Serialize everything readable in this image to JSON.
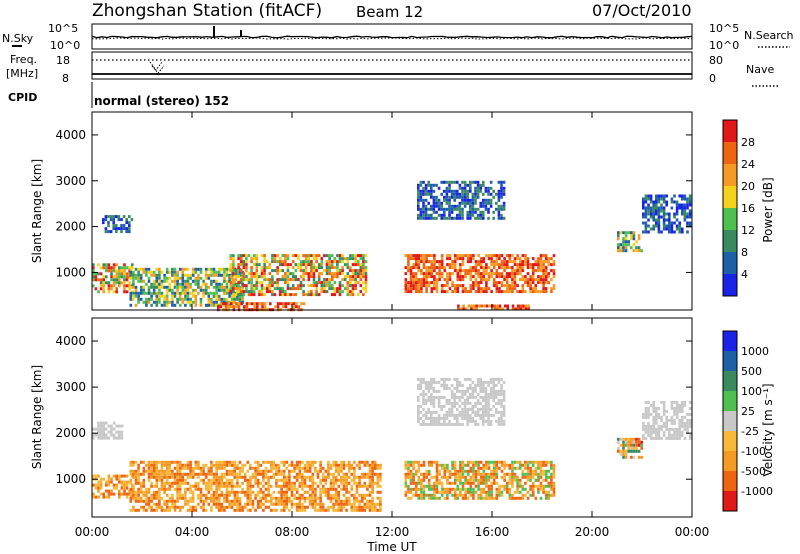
{
  "header": {
    "station": "Zhongshan Station (fitACF)",
    "beam": "Beam 12",
    "date": "07/Oct/2010"
  },
  "noise_panel": {
    "left_label": "N.Sky",
    "right_label": "N.Search",
    "left_ticks": [
      "10^5",
      "10^0"
    ],
    "right_ticks": [
      "10^5",
      "10^0"
    ]
  },
  "freq_panel": {
    "left_label_line1": "Freq.",
    "left_label_line2": "[MHz]",
    "right_label": "Nave",
    "left_ticks": [
      "18",
      "8"
    ],
    "right_ticks": [
      "80",
      "0"
    ]
  },
  "cpid_panel": {
    "label": "CPID",
    "text": "normal (stereo) 152"
  },
  "x_axis": {
    "label": "Time UT",
    "ticks": [
      "00:00",
      "04:00",
      "08:00",
      "12:00",
      "16:00",
      "20:00",
      "00:00"
    ]
  },
  "colors": {
    "power_scale": [
      "#1a24e6",
      "#1d5fa8",
      "#3a8a60",
      "#4fbf4f",
      "#f4d21c",
      "#f59a22",
      "#ee6410",
      "#e01818"
    ],
    "velocity_scale": [
      "#e01818",
      "#ee6410",
      "#f59a22",
      "#f5b838",
      "#c8c8c8",
      "#4fbf4f",
      "#3a8a60",
      "#1d5fa8",
      "#1a24e6"
    ]
  },
  "chart_data": [
    {
      "type": "heatmap",
      "title": "Power",
      "xlabel": "Time UT",
      "ylabel": "Slant Range [km]",
      "xlim": [
        0,
        24
      ],
      "ylim": [
        180,
        4500
      ],
      "y_ticks": [
        "1000",
        "2000",
        "3000",
        "4000"
      ],
      "colorbar_label": "Power [dB]",
      "colorbar_ticks": [
        "28",
        "24",
        "20",
        "16",
        "12",
        "8",
        "4"
      ],
      "regions": [
        {
          "t": [
            0.0,
            1.6
          ],
          "r": [
            600,
            1200
          ],
          "level": "mixed-high"
        },
        {
          "t": [
            0.4,
            1.6
          ],
          "r": [
            1900,
            2250
          ],
          "level": "low"
        },
        {
          "t": [
            1.5,
            6.0
          ],
          "r": [
            300,
            1100
          ],
          "level": "mixed"
        },
        {
          "t": [
            5.0,
            8.5
          ],
          "r": [
            200,
            350
          ],
          "level": "high"
        },
        {
          "t": [
            5.5,
            11.0
          ],
          "r": [
            500,
            1400
          ],
          "level": "mixed-high"
        },
        {
          "t": [
            12.5,
            18.5
          ],
          "r": [
            600,
            1400
          ],
          "level": "high"
        },
        {
          "t": [
            13.0,
            16.5
          ],
          "r": [
            2200,
            3000
          ],
          "level": "low"
        },
        {
          "t": [
            14.5,
            17.5
          ],
          "r": [
            180,
            300
          ],
          "level": "high"
        },
        {
          "t": [
            21.0,
            22.0
          ],
          "r": [
            1500,
            1900
          ],
          "level": "mixed"
        },
        {
          "t": [
            22.0,
            23.9
          ],
          "r": [
            1900,
            2700
          ],
          "level": "low"
        }
      ]
    },
    {
      "type": "heatmap",
      "title": "Velocity",
      "xlabel": "Time UT",
      "ylabel": "Slant Range [km]",
      "xlim": [
        0,
        24
      ],
      "ylim": [
        180,
        4500
      ],
      "y_ticks": [
        "1000",
        "2000",
        "3000",
        "4000"
      ],
      "colorbar_label": "Velocity [m s⁻¹]",
      "colorbar_ticks": [
        "1000",
        "500",
        "100",
        "25",
        "-25",
        "-100",
        "-500",
        "-1000"
      ],
      "regions": [
        {
          "t": [
            0.0,
            1.6
          ],
          "r": [
            600,
            1100
          ],
          "level": "negative"
        },
        {
          "t": [
            0.0,
            1.2
          ],
          "r": [
            1900,
            2250
          ],
          "level": "near-zero"
        },
        {
          "t": [
            1.5,
            11.5
          ],
          "r": [
            300,
            1400
          ],
          "level": "negative"
        },
        {
          "t": [
            12.5,
            18.5
          ],
          "r": [
            600,
            1400
          ],
          "level": "negative-mixed"
        },
        {
          "t": [
            13.0,
            16.5
          ],
          "r": [
            2200,
            3200
          ],
          "level": "near-zero"
        },
        {
          "t": [
            21.0,
            22.0
          ],
          "r": [
            1500,
            1900
          ],
          "level": "mixed"
        },
        {
          "t": [
            22.0,
            23.9
          ],
          "r": [
            1900,
            2700
          ],
          "level": "near-zero"
        }
      ]
    }
  ]
}
